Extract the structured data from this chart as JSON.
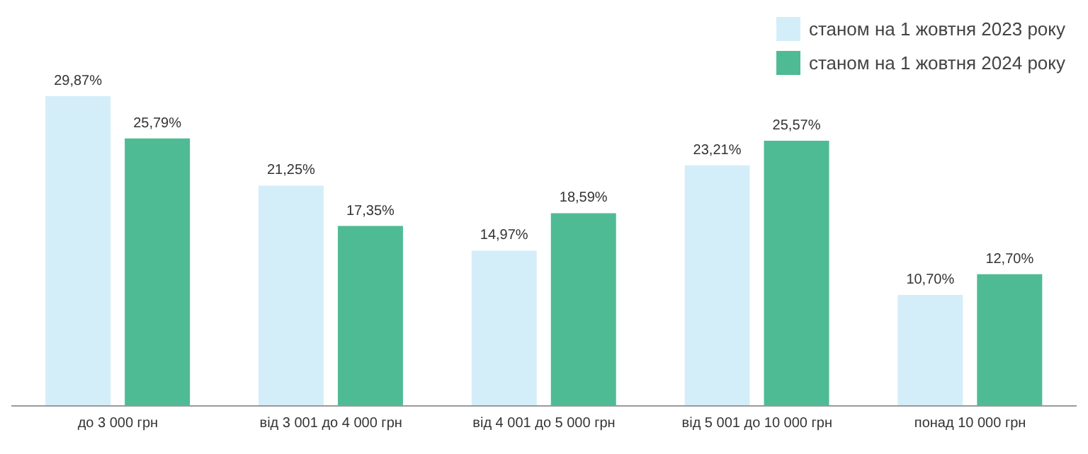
{
  "chart_data": {
    "type": "bar",
    "categories": [
      "до 3 000 грн",
      "від 3 001 до 4 000 грн",
      "від 4 001 до 5 000 грн",
      "від 5 001 до 10 000 грн",
      "понад 10 000 грн"
    ],
    "series": [
      {
        "name": "станом на 1 жовтня 2023 року",
        "color": "#d4eef9",
        "values": [
          29.87,
          21.25,
          14.97,
          23.21,
          10.7
        ],
        "value_labels": [
          "29,87%",
          "21,25%",
          "14,97%",
          "23,21%",
          "10,70%"
        ]
      },
      {
        "name": "станом на 1 жовтня 2024 року",
        "color": "#4fbb94",
        "values": [
          25.79,
          17.35,
          18.59,
          25.57,
          12.7
        ],
        "value_labels": [
          "25,79%",
          "17,35%",
          "18,59%",
          "25,57%",
          "12,70%"
        ]
      }
    ],
    "legend": "top right",
    "grid": false
  }
}
